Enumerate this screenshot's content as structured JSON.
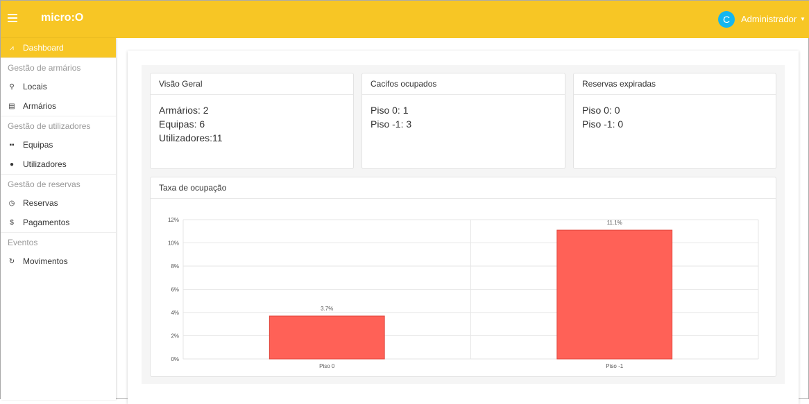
{
  "header": {
    "logo": "micro:O",
    "avatar_letter": "C",
    "user": "Administrador"
  },
  "sidebar": {
    "items": [
      {
        "type": "item",
        "label": "Dashboard",
        "icon": "chart-icon",
        "glyph": "⩘",
        "active": true
      },
      {
        "type": "group",
        "label": "Gestão de armários"
      },
      {
        "type": "item",
        "label": "Locais",
        "icon": "map-pin-icon",
        "glyph": "⚲"
      },
      {
        "type": "item",
        "label": "Armários",
        "icon": "list-icon",
        "glyph": "▤"
      },
      {
        "type": "group",
        "label": "Gestão de utilizadores"
      },
      {
        "type": "item",
        "label": "Equipas",
        "icon": "teams-icon",
        "glyph": "▪▪"
      },
      {
        "type": "item",
        "label": "Utilizadores",
        "icon": "person-icon",
        "glyph": "●"
      },
      {
        "type": "group",
        "label": "Gestão de reservas"
      },
      {
        "type": "item",
        "label": "Reservas",
        "icon": "clock-icon",
        "glyph": "◷"
      },
      {
        "type": "item",
        "label": "Pagamentos",
        "icon": "dollar-icon",
        "glyph": "$"
      },
      {
        "type": "group",
        "label": "Eventos"
      },
      {
        "type": "item",
        "label": "Movimentos",
        "icon": "refresh-icon",
        "glyph": "↻"
      }
    ]
  },
  "cards": [
    {
      "title": "Visão Geral",
      "lines": [
        "Armários: 2",
        "Equipas: 6",
        "Utilizadores:11"
      ]
    },
    {
      "title": "Cacifos ocupados",
      "lines": [
        "Piso 0: 1",
        "Piso -1: 3"
      ]
    },
    {
      "title": "Reservas expiradas",
      "lines": [
        "Piso 0: 0",
        "Piso -1: 0"
      ]
    }
  ],
  "chart_card": {
    "title": "Taxa de ocupação"
  },
  "chart_data": {
    "type": "bar",
    "title": "Taxa de ocupação",
    "categories": [
      "Piso 0",
      "Piso -1"
    ],
    "values": [
      3.7,
      11.1
    ],
    "data_labels": [
      "3.7%",
      "11.1%"
    ],
    "ylim": [
      0,
      12
    ],
    "yticks": [
      0,
      2,
      4,
      6,
      8,
      10,
      12
    ],
    "ytick_labels": [
      "0%",
      "2%",
      "4%",
      "6%",
      "8%",
      "10%",
      "12%"
    ],
    "grid": true,
    "bar_color": "#ff6157"
  }
}
